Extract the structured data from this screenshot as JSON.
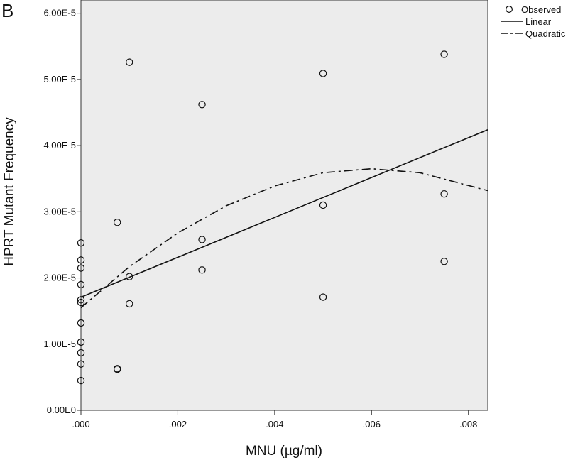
{
  "panel_label": "B",
  "chart_data": {
    "type": "scatter",
    "xlabel": "MNU (µg/ml)",
    "ylabel": "HPRT Mutant Frequency",
    "xlim": [
      0,
      0.0084
    ],
    "ylim": [
      0,
      6.2e-05
    ],
    "x_ticks": [
      {
        "value": 0,
        "label": ".000"
      },
      {
        "value": 0.002,
        "label": ".002"
      },
      {
        "value": 0.004,
        "label": ".004"
      },
      {
        "value": 0.006,
        "label": ".006"
      },
      {
        "value": 0.008,
        "label": ".008"
      }
    ],
    "y_ticks": [
      {
        "value": 0,
        "label": "0.00E0"
      },
      {
        "value": 1e-05,
        "label": "1.00E-5"
      },
      {
        "value": 2e-05,
        "label": "2.00E-5"
      },
      {
        "value": 3e-05,
        "label": "3.00E-5"
      },
      {
        "value": 4e-05,
        "label": "4.00E-5"
      },
      {
        "value": 5e-05,
        "label": "5.00E-5"
      },
      {
        "value": 6e-05,
        "label": "6.00E-5"
      }
    ],
    "grid": false,
    "legend_position": "outside-top-right",
    "legend": [
      {
        "label": "Observed",
        "marker": "circle"
      },
      {
        "label": "Linear",
        "style": "solid"
      },
      {
        "label": "Quadratic",
        "style": "dash-dot"
      }
    ],
    "series": [
      {
        "name": "Observed",
        "type": "scatter",
        "points": [
          {
            "x": 0,
            "y": 2.53e-05
          },
          {
            "x": 0,
            "y": 2.27e-05
          },
          {
            "x": 0,
            "y": 2.15e-05
          },
          {
            "x": 0,
            "y": 1.9e-05
          },
          {
            "x": 0,
            "y": 1.67e-05
          },
          {
            "x": 0,
            "y": 1.63e-05
          },
          {
            "x": 0,
            "y": 1.32e-05
          },
          {
            "x": 0,
            "y": 1.03e-05
          },
          {
            "x": 0,
            "y": 8.7e-06
          },
          {
            "x": 0,
            "y": 7e-06
          },
          {
            "x": 0,
            "y": 4.5e-06
          },
          {
            "x": 0.00075,
            "y": 2.84e-05
          },
          {
            "x": 0.00075,
            "y": 6.3e-06
          },
          {
            "x": 0.00075,
            "y": 6.2e-06
          },
          {
            "x": 0.001,
            "y": 5.26e-05
          },
          {
            "x": 0.001,
            "y": 2.02e-05
          },
          {
            "x": 0.001,
            "y": 1.61e-05
          },
          {
            "x": 0.0025,
            "y": 4.62e-05
          },
          {
            "x": 0.0025,
            "y": 2.58e-05
          },
          {
            "x": 0.0025,
            "y": 2.12e-05
          },
          {
            "x": 0.005,
            "y": 5.09e-05
          },
          {
            "x": 0.005,
            "y": 3.1e-05
          },
          {
            "x": 0.005,
            "y": 1.71e-05
          },
          {
            "x": 0.0075,
            "y": 5.38e-05
          },
          {
            "x": 0.0075,
            "y": 3.27e-05
          },
          {
            "x": 0.0075,
            "y": 2.25e-05
          }
        ]
      },
      {
        "name": "Linear",
        "type": "line",
        "style": "solid",
        "x": [
          0,
          0.0084
        ],
        "y": [
          1.71e-05,
          4.24e-05
        ]
      },
      {
        "name": "Quadratic",
        "type": "line",
        "style": "dash-dot",
        "x": [
          0,
          0.001,
          0.002,
          0.003,
          0.004,
          0.005,
          0.006,
          0.007,
          0.0084
        ],
        "y": [
          1.55e-05,
          2.17e-05,
          2.68e-05,
          3.09e-05,
          3.39e-05,
          3.59e-05,
          3.65e-05,
          3.59e-05,
          3.32e-05
        ]
      }
    ]
  }
}
